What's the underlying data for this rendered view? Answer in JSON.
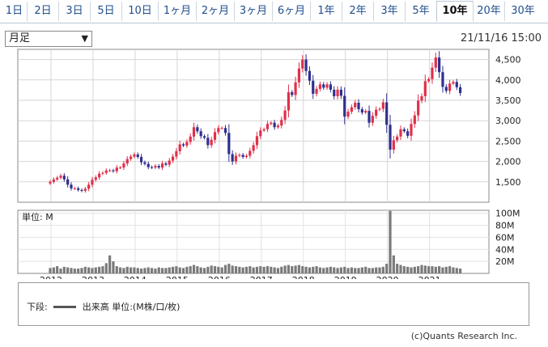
{
  "tabs": [
    "1日",
    "2日",
    "3日",
    "5日",
    "10日",
    "1ヶ月",
    "2ヶ月",
    "3ヶ月",
    "6ヶ月",
    "1年",
    "2年",
    "3年",
    "5年",
    "10年",
    "20年",
    "30年"
  ],
  "active_tab": "10年",
  "period_select": "月足",
  "timestamp": "21/11/16 15:00",
  "volume_unit_label": "単位: M",
  "legend": {
    "prefix": "下段:",
    "series": "出来高 単位:(M株/口/枚)"
  },
  "credit": "(c)Quants Research Inc.",
  "colors": {
    "up": "#e0304a",
    "down": "#2f2f8f",
    "volume": "#7a7a7a"
  },
  "chart_data": [
    {
      "type": "candlestick",
      "x_ticks": [
        "2012",
        "2013",
        "2014",
        "2015",
        "2016",
        "2017",
        "2018",
        "2019",
        "2020",
        "2021"
      ],
      "y_ticks": [
        "1,500",
        "2,000",
        "2,500",
        "3,000",
        "3,500",
        "4,000",
        "4,500"
      ],
      "ylim": [
        1000,
        4750
      ],
      "grid": true,
      "close": [
        1500,
        1560,
        1600,
        1650,
        1560,
        1430,
        1340,
        1340,
        1300,
        1280,
        1330,
        1430,
        1550,
        1610,
        1700,
        1720,
        1780,
        1780,
        1760,
        1850,
        1850,
        1950,
        2060,
        2120,
        2170,
        2110,
        1980,
        1940,
        1860,
        1850,
        1890,
        1850,
        1950,
        1920,
        2020,
        2120,
        2250,
        2420,
        2390,
        2480,
        2610,
        2840,
        2740,
        2620,
        2580,
        2400,
        2530,
        2720,
        2820,
        2820,
        2700,
        2180,
        2000,
        2140,
        2160,
        2110,
        2140,
        2260,
        2400,
        2620,
        2760,
        2790,
        2920,
        2950,
        2840,
        2880,
        3020,
        3250,
        3700,
        3630,
        3940,
        4280,
        4500,
        4220,
        3980,
        3660,
        3780,
        3890,
        3810,
        3890,
        3760,
        3600,
        3760,
        3610,
        3100,
        3220,
        3330,
        3440,
        3280,
        3200,
        3240,
        2950,
        3120,
        3270,
        3290,
        3450,
        2900,
        2290,
        2520,
        2610,
        2790,
        2740,
        2630,
        2920,
        3130,
        3490,
        3600,
        3970,
        4020,
        4300,
        4550,
        4190,
        3830,
        3730,
        3910,
        3950,
        3820,
        3680
      ],
      "volume_ylim": [
        0,
        105
      ],
      "volume_ticks": [
        "20M",
        "40M",
        "60M",
        "80M",
        "100M"
      ],
      "volume": [
        9,
        10,
        12,
        8,
        11,
        10,
        9,
        8,
        8,
        9,
        11,
        10,
        9,
        10,
        11,
        12,
        17,
        30,
        20,
        12,
        10,
        9,
        11,
        10,
        10,
        9,
        8,
        9,
        10,
        9,
        8,
        10,
        9,
        9,
        10,
        11,
        12,
        10,
        9,
        11,
        12,
        14,
        12,
        10,
        9,
        11,
        13,
        12,
        11,
        10,
        14,
        16,
        13,
        12,
        11,
        10,
        11,
        12,
        10,
        11,
        12,
        11,
        12,
        11,
        10,
        9,
        11,
        13,
        14,
        12,
        13,
        14,
        12,
        11,
        10,
        11,
        12,
        10,
        9,
        10,
        11,
        10,
        9,
        10,
        11,
        9,
        10,
        9,
        9,
        10,
        11,
        9,
        9,
        10,
        10,
        11,
        16,
        104,
        30,
        16,
        14,
        12,
        11,
        10,
        11,
        12,
        14,
        13,
        12,
        12,
        11,
        12,
        10,
        11,
        12,
        10,
        9,
        8
      ]
    }
  ]
}
